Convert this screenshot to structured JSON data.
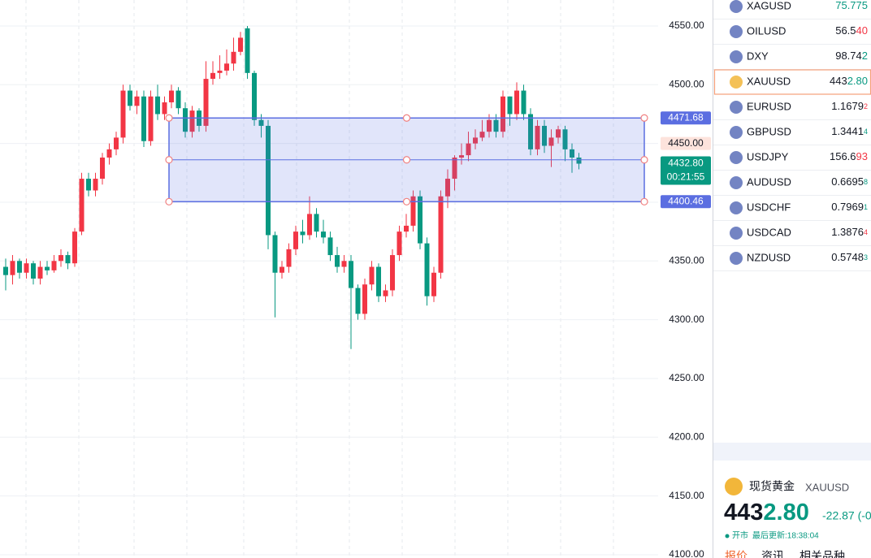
{
  "chart_data": {
    "type": "candlestick",
    "series": [
      {
        "open": [
          4345,
          4338,
          4350,
          4340,
          4348,
          4335,
          4345,
          4342,
          4350,
          4355,
          4348,
          4375,
          4420,
          4410,
          4420,
          4438,
          4445,
          4455,
          4495,
          4482,
          4490,
          4452,
          4490,
          4475,
          4485,
          4495,
          4480,
          4460,
          4478,
          4465,
          4505,
          4510,
          4512,
          4518,
          4528,
          4548,
          4510,
          4470,
          4465,
          4372,
          4340,
          4345,
          4360,
          4375,
          4372,
          4390,
          4375,
          4370,
          4355,
          4345,
          4350,
          4327,
          4305,
          4330,
          4345,
          4320,
          4325,
          4355,
          4375,
          4380,
          4405,
          4365,
          4320,
          4340,
          4405,
          4420,
          4438,
          4440,
          4450,
          4455,
          4460,
          4470,
          4460,
          4490,
          4475,
          4495,
          4475,
          4445,
          4465,
          4448,
          4455,
          4462,
          4445,
          4438
        ],
        "high": [
          4352,
          4355,
          4352,
          4352,
          4350,
          4350,
          4350,
          4355,
          4360,
          4358,
          4378,
          4425,
          4425,
          4425,
          4442,
          4450,
          4460,
          4500,
          4500,
          4495,
          4495,
          4495,
          4500,
          4490,
          4500,
          4498,
          4485,
          4482,
          4480,
          4520,
          4520,
          4525,
          4530,
          4540,
          4545,
          4550,
          4512,
          4475,
          4470,
          4375,
          4350,
          4365,
          4380,
          4385,
          4405,
          4395,
          4385,
          4375,
          4362,
          4355,
          4355,
          4330,
          4335,
          4350,
          4348,
          4330,
          4360,
          4380,
          4390,
          4410,
          4410,
          4370,
          4345,
          4410,
          4428,
          4440,
          4450,
          4460,
          4462,
          4470,
          4475,
          4475,
          4495,
          4490,
          4502,
          4500,
          4480,
          4470,
          4470,
          4462,
          4465,
          4465,
          4450,
          4442
        ],
        "low": [
          4325,
          4330,
          4335,
          4335,
          4330,
          4330,
          4338,
          4340,
          4345,
          4343,
          4345,
          4372,
          4405,
          4405,
          4415,
          4432,
          4440,
          4450,
          4478,
          4475,
          4447,
          4448,
          4470,
          4470,
          4480,
          4475,
          4455,
          4455,
          4460,
          4460,
          4500,
          4505,
          4508,
          4512,
          4525,
          4505,
          4465,
          4455,
          4360,
          4302,
          4335,
          4340,
          4355,
          4365,
          4368,
          4370,
          4365,
          4350,
          4340,
          4340,
          4275,
          4300,
          4300,
          4325,
          4315,
          4315,
          4320,
          4350,
          4370,
          4375,
          4360,
          4312,
          4315,
          4335,
          4395,
          4410,
          4432,
          4435,
          4445,
          4452,
          4455,
          4455,
          4455,
          4465,
          4470,
          4470,
          4440,
          4440,
          4442,
          4430,
          4450,
          4435,
          4425,
          4428
        ],
        "close": [
          4338,
          4350,
          4340,
          4348,
          4335,
          4345,
          4342,
          4350,
          4355,
          4348,
          4375,
          4420,
          4410,
          4420,
          4438,
          4445,
          4455,
          4495,
          4482,
          4490,
          4452,
          4490,
          4475,
          4485,
          4495,
          4480,
          4460,
          4478,
          4465,
          4505,
          4510,
          4512,
          4518,
          4528,
          4540,
          4510,
          4470,
          4465,
          4372,
          4340,
          4345,
          4360,
          4375,
          4372,
          4390,
          4375,
          4370,
          4355,
          4345,
          4350,
          4327,
          4305,
          4330,
          4345,
          4320,
          4325,
          4355,
          4375,
          4380,
          4405,
          4365,
          4320,
          4340,
          4405,
          4420,
          4438,
          4440,
          4450,
          4455,
          4460,
          4470,
          4460,
          4490,
          4475,
          4495,
          4475,
          4445,
          4465,
          4448,
          4455,
          4462,
          4445,
          4438,
          4432.8
        ],
        "up_color": "#f23645",
        "down_color": "#089981"
      }
    ],
    "ylim": [
      4097.2,
      4572.1
    ],
    "yticks": [
      {
        "value": 4550,
        "label": "4550.00"
      },
      {
        "value": 4500,
        "label": "4500.00"
      },
      {
        "value": 4450,
        "label": "4450.00"
      },
      {
        "value": 4400,
        "label": "4400.00"
      },
      {
        "value": 4350,
        "label": "4350.00"
      },
      {
        "value": 4300,
        "label": "4300.00"
      },
      {
        "value": 4250,
        "label": "4250.00"
      },
      {
        "value": 4200,
        "label": "4200.00"
      },
      {
        "value": 4150,
        "label": "4150.00"
      },
      {
        "value": 4100,
        "label": "4100.00"
      }
    ],
    "grid": true,
    "box": {
      "top": 4471.68,
      "bottom": 4400.46,
      "color": "#5b6ee1"
    },
    "crosshair_price": {
      "value": 4450,
      "label": "4450.00"
    },
    "last_price": {
      "value": 4432.8,
      "label": "4432.80",
      "countdown": "00:21:55",
      "color": "#089981"
    }
  },
  "watchlist": [
    {
      "symbol": "XAGUSD",
      "price": [
        {
          "text": "75.775",
          "color": "#089981"
        }
      ]
    },
    {
      "symbol": "OILUSD",
      "price": [
        {
          "text": "56.5"
        },
        {
          "text": "40",
          "color": "#f23645"
        }
      ]
    },
    {
      "symbol": "DXY",
      "price": [
        {
          "text": "98.74"
        },
        {
          "text": "2",
          "color": "#089981"
        }
      ]
    },
    {
      "symbol": "XAUUSD",
      "price": [
        {
          "text": "443"
        },
        {
          "text": "2.80",
          "color": "#089981"
        }
      ],
      "selected": true
    },
    {
      "symbol": "EURUSD",
      "price": [
        {
          "text": "1.1679"
        },
        {
          "text": "2",
          "color": "#f23645",
          "small": true
        }
      ]
    },
    {
      "symbol": "GBPUSD",
      "price": [
        {
          "text": "1.3441"
        },
        {
          "text": "4",
          "color": "#089981",
          "small": true
        }
      ]
    },
    {
      "symbol": "USDJPY",
      "price": [
        {
          "text": "156.6"
        },
        {
          "text": "93",
          "color": "#f23645"
        }
      ]
    },
    {
      "symbol": "AUDUSD",
      "price": [
        {
          "text": "0.6695"
        },
        {
          "text": "8",
          "color": "#089981",
          "small": true
        }
      ]
    },
    {
      "symbol": "USDCHF",
      "price": [
        {
          "text": "0.7969"
        },
        {
          "text": "1",
          "color": "#089981",
          "small": true
        }
      ]
    },
    {
      "symbol": "USDCAD",
      "price": [
        {
          "text": "1.3876"
        },
        {
          "text": "4",
          "color": "#f23645",
          "small": true
        }
      ]
    },
    {
      "symbol": "NZDUSD",
      "price": [
        {
          "text": "0.5748"
        },
        {
          "text": "3",
          "color": "#089981",
          "small": true
        }
      ]
    }
  ],
  "detail": {
    "name": "现货黄金",
    "symbol": "XAUUSD",
    "price_main": "443",
    "price_tail": "2.80",
    "change": "-22.87 (-0",
    "status": "开市",
    "updated": "最后更新:18:38:04",
    "tabs": [
      "报价",
      "资讯",
      "相关品种"
    ]
  }
}
